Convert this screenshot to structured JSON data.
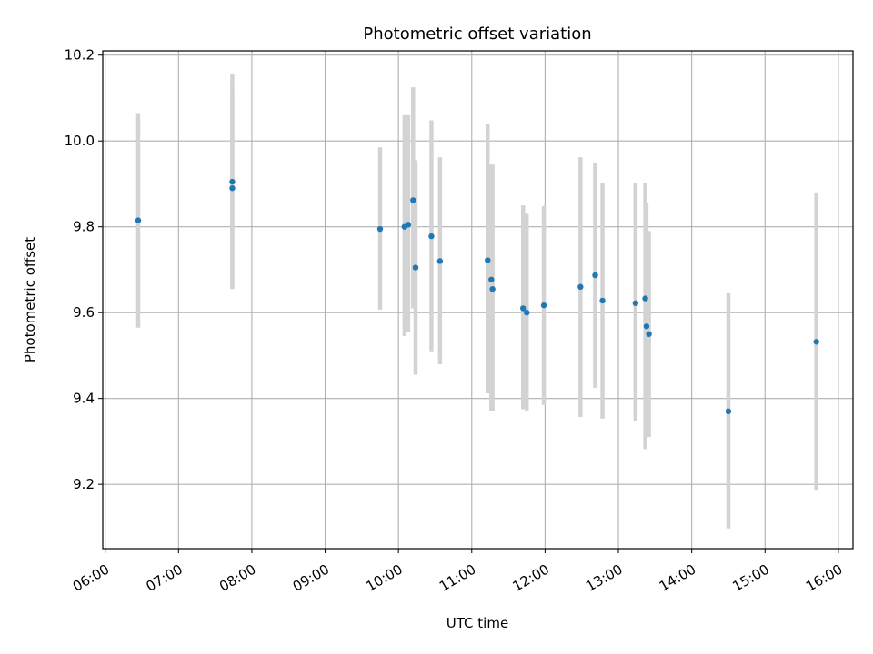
{
  "chart_data": {
    "type": "scatter",
    "title": "Photometric offset variation",
    "xlabel": "UTC time",
    "ylabel": "Photometric offset",
    "x_unit": "hours (UTC)",
    "xlim": [
      "05:58",
      "16:12"
    ],
    "ylim": [
      9.05,
      10.21
    ],
    "x_ticks": [
      "06:00",
      "07:00",
      "08:00",
      "09:00",
      "10:00",
      "11:00",
      "12:00",
      "13:00",
      "14:00",
      "15:00",
      "16:00"
    ],
    "y_ticks": [
      "9.2",
      "9.4",
      "9.6",
      "9.8",
      "10.0",
      "10.2"
    ],
    "y_tick_values": [
      9.2,
      9.4,
      9.6,
      9.8,
      10.0,
      10.2
    ],
    "grid": true,
    "marker_color": "#1f77b4",
    "errorbar_color": "#d3d3d3",
    "points": [
      {
        "t": "06:27",
        "y": 9.815,
        "ylo": 9.565,
        "yhi": 10.065
      },
      {
        "t": "07:44",
        "y": 9.89,
        "ylo": 9.655,
        "yhi": 10.115
      },
      {
        "t": "07:44",
        "y": 9.905,
        "ylo": 9.66,
        "yhi": 10.155
      },
      {
        "t": "09:45",
        "y": 9.795,
        "ylo": 9.607,
        "yhi": 9.985
      },
      {
        "t": "10:05",
        "y": 9.8,
        "ylo": 9.545,
        "yhi": 10.06
      },
      {
        "t": "10:08",
        "y": 9.805,
        "ylo": 9.555,
        "yhi": 10.06
      },
      {
        "t": "10:12",
        "y": 9.862,
        "ylo": 9.61,
        "yhi": 10.125
      },
      {
        "t": "10:14",
        "y": 9.705,
        "ylo": 9.455,
        "yhi": 9.955
      },
      {
        "t": "10:27",
        "y": 9.778,
        "ylo": 9.51,
        "yhi": 10.048
      },
      {
        "t": "10:34",
        "y": 9.72,
        "ylo": 9.48,
        "yhi": 9.962
      },
      {
        "t": "11:13",
        "y": 9.722,
        "ylo": 9.412,
        "yhi": 10.04
      },
      {
        "t": "11:16",
        "y": 9.677,
        "ylo": 9.37,
        "yhi": 9.945
      },
      {
        "t": "11:17",
        "y": 9.655,
        "ylo": 9.37,
        "yhi": 9.945
      },
      {
        "t": "11:42",
        "y": 9.61,
        "ylo": 9.375,
        "yhi": 9.85
      },
      {
        "t": "11:45",
        "y": 9.6,
        "ylo": 9.372,
        "yhi": 9.83
      },
      {
        "t": "11:59",
        "y": 9.617,
        "ylo": 9.385,
        "yhi": 9.848
      },
      {
        "t": "12:29",
        "y": 9.66,
        "ylo": 9.357,
        "yhi": 9.962
      },
      {
        "t": "12:41",
        "y": 9.687,
        "ylo": 9.425,
        "yhi": 9.948
      },
      {
        "t": "12:47",
        "y": 9.628,
        "ylo": 9.353,
        "yhi": 9.903
      },
      {
        "t": "13:14",
        "y": 9.622,
        "ylo": 9.348,
        "yhi": 9.903
      },
      {
        "t": "13:22",
        "y": 9.633,
        "ylo": 9.282,
        "yhi": 9.903
      },
      {
        "t": "13:23",
        "y": 9.568,
        "ylo": 9.31,
        "yhi": 9.855
      },
      {
        "t": "13:25",
        "y": 9.55,
        "ylo": 9.31,
        "yhi": 9.79
      },
      {
        "t": "14:30",
        "y": 9.37,
        "ylo": 9.097,
        "yhi": 9.645
      },
      {
        "t": "15:42",
        "y": 9.532,
        "ylo": 9.185,
        "yhi": 9.88
      }
    ]
  }
}
